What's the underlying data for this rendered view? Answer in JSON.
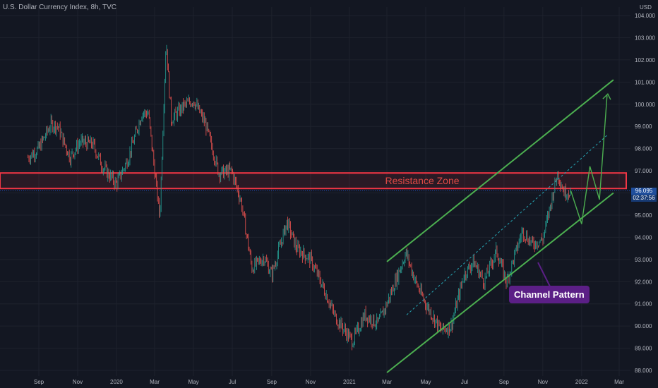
{
  "header": {
    "title": "U.S. Dollar Currency Index, 8h, TVC"
  },
  "axis": {
    "currency": "USD"
  },
  "price_label": {
    "value": "96.095",
    "countdown": "02:37:56"
  },
  "annotations": {
    "resistance_zone": "Resistance Zone",
    "channel_pattern": "Channel Pattern"
  },
  "colors": {
    "background": "#131722",
    "up": "#26a69a",
    "down": "#ef5350",
    "channel": "#4caf50",
    "resistance": "#f23645",
    "callout": "#5b1f86"
  },
  "chart_data": {
    "type": "line",
    "title": "U.S. Dollar Currency Index, 8h, TVC",
    "ylabel": "USD",
    "ylim": [
      88,
      104
    ],
    "yticks": [
      "104.000",
      "103.000",
      "102.000",
      "101.000",
      "100.000",
      "99.000",
      "98.000",
      "97.000",
      "96.000",
      "95.000",
      "94.000",
      "93.000",
      "92.000",
      "91.000",
      "90.000",
      "89.000",
      "88.000"
    ],
    "xticks": [
      "Sep",
      "Nov",
      "2020",
      "Mar",
      "May",
      "Jul",
      "Sep",
      "Nov",
      "2021",
      "Mar",
      "May",
      "Jul",
      "Sep",
      "Nov",
      "2022",
      "Mar"
    ],
    "series": [
      {
        "x": [
          "2019-08-15",
          "2019-09-01",
          "2019-09-20",
          "2019-10-01",
          "2019-10-20",
          "2019-11-05",
          "2019-11-25",
          "2019-12-10",
          "2020-01-01",
          "2020-01-20",
          "2020-02-10",
          "2020-02-20",
          "2020-03-09",
          "2020-03-19",
          "2020-03-27",
          "2020-04-15",
          "2020-05-01",
          "2020-05-20",
          "2020-06-10",
          "2020-06-30",
          "2020-07-15",
          "2020-08-01",
          "2020-08-20",
          "2020-09-01",
          "2020-09-25",
          "2020-10-10",
          "2020-11-01",
          "2020-11-20",
          "2020-12-10",
          "2021-01-06",
          "2021-01-25",
          "2021-02-15",
          "2021-03-01",
          "2021-03-31",
          "2021-04-15",
          "2021-05-01",
          "2021-05-25",
          "2021-06-10",
          "2021-06-30",
          "2021-07-15",
          "2021-08-01",
          "2021-08-20",
          "2021-09-05",
          "2021-09-30",
          "2021-10-15",
          "2021-11-01",
          "2021-11-24",
          "2021-12-05",
          "2021-12-15"
        ],
        "values": [
          97.6,
          98.0,
          99.1,
          99.0,
          97.6,
          98.3,
          98.2,
          97.2,
          96.4,
          97.6,
          99.6,
          99.6,
          94.9,
          102.9,
          99.3,
          99.9,
          100.2,
          99.1,
          96.9,
          97.0,
          95.6,
          92.6,
          93.1,
          92.3,
          94.7,
          93.5,
          93.0,
          91.8,
          90.4,
          89.3,
          90.5,
          90.1,
          91.0,
          93.3,
          92.0,
          91.0,
          89.8,
          90.0,
          92.3,
          92.9,
          92.0,
          93.4,
          92.0,
          94.3,
          93.7,
          93.9,
          96.9,
          96.0,
          96.1
        ]
      }
    ],
    "resistance_zone": [
      96.2,
      96.9
    ],
    "channel_upper": {
      "x": [
        "2021-03-01",
        "2022-02-20"
      ],
      "y": [
        92.9,
        101.1
      ]
    },
    "channel_lower": {
      "x": [
        "2021-03-01",
        "2022-02-20"
      ],
      "y": [
        87.9,
        96.0
      ]
    },
    "channel_mid": {
      "x": [
        "2021-04-01",
        "2022-02-10"
      ],
      "y": [
        90.5,
        98.6
      ]
    },
    "projection": {
      "x": [
        "2021-12-15",
        "2022-01-01",
        "2022-01-14",
        "2022-01-29",
        "2022-02-10"
      ],
      "y": [
        96.1,
        94.6,
        97.2,
        95.7,
        100.4
      ]
    }
  }
}
